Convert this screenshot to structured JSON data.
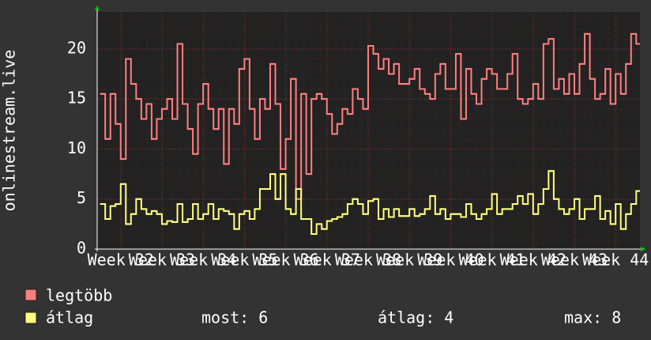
{
  "chart_data": {
    "type": "step-line",
    "y_label": "onlinestream.live",
    "xlim": [
      31.43,
      44.59
    ],
    "xticks": [
      {
        "value": 32,
        "label": "Week 32"
      },
      {
        "value": 33,
        "label": "Week 33"
      },
      {
        "value": 34,
        "label": "Week 34"
      },
      {
        "value": 35,
        "label": "Week 35"
      },
      {
        "value": 36,
        "label": "Week 36"
      },
      {
        "value": 37,
        "label": "Week 37"
      },
      {
        "value": 38,
        "label": "Week 38"
      },
      {
        "value": 39,
        "label": "Week 39"
      },
      {
        "value": 40,
        "label": "Week 40"
      },
      {
        "value": 41,
        "label": "Week 41"
      },
      {
        "value": 42,
        "label": "Week 42"
      },
      {
        "value": 43,
        "label": "Week 43"
      },
      {
        "value": 44,
        "label": "Week 44"
      }
    ],
    "ylim": [
      0,
      23.7
    ],
    "yticks": [
      0,
      5,
      10,
      15,
      20
    ],
    "grid": true,
    "x": [
      31.5,
      31.625,
      31.75,
      31.875,
      32,
      32.125,
      32.25,
      32.375,
      32.5,
      32.625,
      32.75,
      32.875,
      33,
      33.125,
      33.25,
      33.375,
      33.5,
      33.625,
      33.75,
      33.875,
      34,
      34.125,
      34.25,
      34.375,
      34.5,
      34.625,
      34.75,
      34.875,
      35,
      35.125,
      35.25,
      35.375,
      35.5,
      35.625,
      35.75,
      35.875,
      36,
      36.125,
      36.25,
      36.375,
      36.5,
      36.625,
      36.75,
      36.875,
      37,
      37.125,
      37.25,
      37.375,
      37.5,
      37.625,
      37.75,
      37.875,
      38,
      38.125,
      38.25,
      38.375,
      38.5,
      38.625,
      38.75,
      38.875,
      39,
      39.125,
      39.25,
      39.375,
      39.5,
      39.625,
      39.75,
      39.875,
      40,
      40.125,
      40.25,
      40.375,
      40.5,
      40.625,
      40.75,
      40.875,
      41,
      41.125,
      41.25,
      41.375,
      41.5,
      41.625,
      41.75,
      41.875,
      42,
      42.125,
      42.25,
      42.375,
      42.5,
      42.625,
      42.75,
      42.875,
      43,
      43.125,
      43.25,
      43.375,
      43.5,
      43.625,
      43.75,
      43.875,
      44,
      44.125,
      44.25,
      44.375,
      44.5
    ],
    "series": [
      {
        "name": "legtöbb",
        "color": "#ff7f7f",
        "values": [
          15.5,
          11,
          15.5,
          12.5,
          9,
          19,
          16.5,
          15,
          13,
          14.5,
          11,
          13,
          14,
          15,
          13,
          20.5,
          14.5,
          12,
          9.5,
          14.5,
          16.5,
          14,
          12,
          14,
          8.5,
          14,
          12.5,
          18,
          19,
          14,
          11,
          15,
          14,
          18.5,
          14.5,
          8,
          11,
          17,
          5,
          15.5,
          7.5,
          15,
          15.5,
          15,
          13.5,
          11.5,
          12.5,
          14,
          13.5,
          16,
          15,
          14,
          20.3,
          19.5,
          18,
          19,
          17.5,
          18.5,
          16.5,
          16.5,
          17,
          18,
          16,
          15.5,
          15,
          17.5,
          18.5,
          16,
          16,
          19.5,
          13,
          18,
          15.5,
          14.5,
          17,
          18,
          17.5,
          16,
          16,
          17.5,
          19.5,
          15,
          14.5,
          15,
          16.5,
          15,
          20.5,
          21,
          16,
          17,
          15.5,
          17.5,
          15.5,
          18.5,
          21.5,
          17,
          15,
          15.5,
          18,
          14.5,
          17.5,
          15.5,
          18.5,
          21.5,
          20.5
        ]
      },
      {
        "name": "átlag",
        "color": "#ffff7f",
        "values": [
          4.5,
          3,
          4.3,
          4.5,
          6.5,
          2.5,
          3.5,
          5,
          4,
          3.5,
          3.8,
          3.5,
          2.5,
          2.8,
          2.7,
          4.5,
          2.7,
          3,
          4.5,
          3,
          3.5,
          4.5,
          3,
          4,
          3.8,
          3.5,
          2,
          3.5,
          3.8,
          3,
          4,
          6,
          6,
          7.5,
          5,
          7.5,
          4,
          3.5,
          6,
          3,
          3,
          1.5,
          2.5,
          2,
          2.8,
          3,
          3.2,
          3.5,
          4.5,
          5,
          4.5,
          3.5,
          4.8,
          5,
          3,
          4,
          3.2,
          4,
          3.3,
          3.3,
          4,
          3.3,
          3.5,
          4,
          5.3,
          3.5,
          4,
          3,
          3.5,
          3.5,
          3.2,
          4.5,
          3.5,
          3,
          3.5,
          4,
          5.5,
          3.5,
          4,
          4,
          4.5,
          5.3,
          4.5,
          5.5,
          3.5,
          4.5,
          6,
          7.8,
          5,
          4,
          3.5,
          4,
          5,
          3,
          4,
          4,
          5.3,
          3,
          3.8,
          2.5,
          4.5,
          2,
          3.5,
          4.5,
          5.8
        ]
      }
    ],
    "summary": {
      "current": "most: 6",
      "average": "átlag: 4",
      "maximum": "max: 8"
    }
  }
}
